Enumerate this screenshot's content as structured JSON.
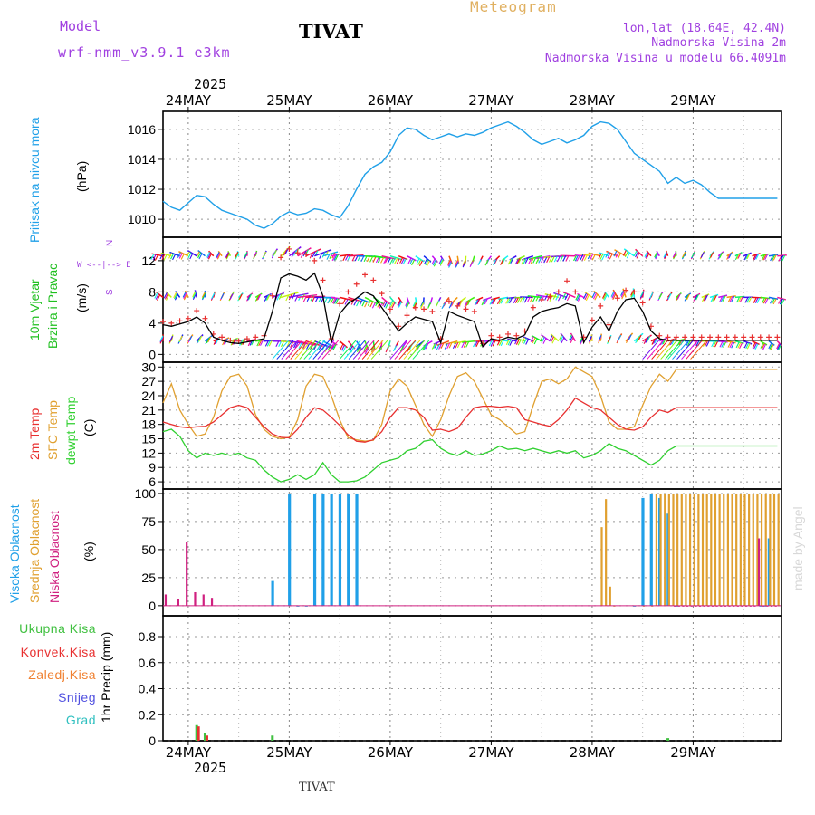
{
  "header": {
    "model_label": "Model",
    "model_name": "wrf-nmm_v3.9.1 e3km",
    "station": "TIVAT",
    "title": "Meteogram",
    "coords": "lon,lat (18.64E, 42.4N)",
    "elevation": "Nadmorska Visina 2m",
    "model_elevation": "Nadmorska Visina u modelu 66.4091m",
    "footer_station": "TIVAT",
    "credit": "made by Angel"
  },
  "colors": {
    "pressure": "#20a0e8",
    "wind_speed_label": "#20c020",
    "t2m": "#e83030",
    "tsfc": "#e0a030",
    "dewpt": "#30d030",
    "cloud_high": "#20a0e8",
    "cloud_mid": "#e0a030",
    "cloud_low": "#d02080",
    "precip_total": "#40c040",
    "precip_conv": "#e83030",
    "precip_frozen": "#f08030",
    "precip_snow": "#5050e0",
    "precip_hail": "#30c0c0"
  },
  "time_axis": {
    "year": "2025",
    "dates": [
      "24MAY",
      "25MAY",
      "26MAY",
      "27MAY",
      "28MAY",
      "29MAY"
    ],
    "start_hour": -6,
    "end_hour": 141
  },
  "panels": {
    "pressure": {
      "label": "Pritisak na nivou mora",
      "unit": "(hPa)",
      "ticks": [
        "1010",
        "1012",
        "1014",
        "1016"
      ]
    },
    "wind": {
      "label1": "10m Vjetar",
      "label2": "Brzina i Pravac",
      "unit": "(m/s)",
      "ticks": [
        "0",
        "4",
        "8",
        "12"
      ],
      "compass": "N",
      "compass_row": "W <--|--> E",
      "compass_s": "S"
    },
    "temperature": {
      "label_t2m": "2m Temp",
      "label_sfc": "SFC Temp",
      "label_dew": "dewpt Temp",
      "unit": "(C)",
      "ticks": [
        "6",
        "9",
        "12",
        "15",
        "18",
        "21",
        "24",
        "27",
        "30"
      ]
    },
    "cloud": {
      "label_high": "Visoka Oblacnost",
      "label_mid": "Srednja Oblacnost",
      "label_low": "Niska Oblacnost",
      "unit": "(%)",
      "ticks": [
        "0",
        "25",
        "50",
        "75",
        "100"
      ]
    },
    "precip": {
      "legend": [
        "Ukupna Kisa",
        "Konvek.Kisa",
        "Zaledj.Kisa",
        "Snijeg",
        "Grad"
      ],
      "unit": "1hr Precip (mm)",
      "ticks": [
        "0",
        "0.2",
        "0.4",
        "0.6",
        "0.8"
      ]
    }
  },
  "chart_data": [
    {
      "type": "line",
      "title": "Pritisak na nivou mora",
      "ylabel": "(hPa)",
      "ylim": [
        1008.8,
        1017.2
      ],
      "x_hours": [
        -6,
        -4,
        -2,
        0,
        2,
        4,
        6,
        8,
        10,
        12,
        14,
        16,
        18,
        20,
        22,
        24,
        26,
        28,
        30,
        32,
        34,
        36,
        38,
        40,
        42,
        44,
        46,
        48,
        50,
        52,
        54,
        56,
        58,
        60,
        62,
        64,
        66,
        68,
        70,
        72,
        74,
        76,
        78,
        80,
        82,
        84,
        86,
        88,
        90,
        92,
        94,
        96,
        98,
        100,
        102,
        104,
        106,
        108,
        110,
        112,
        114,
        116,
        118,
        120,
        122,
        124,
        126,
        128,
        130,
        132,
        134,
        136,
        138,
        140
      ],
      "series": [
        {
          "name": "SLP",
          "values": [
            1011.2,
            1010.8,
            1010.6,
            1011.1,
            1011.6,
            1011.5,
            1011.0,
            1010.6,
            1010.4,
            1010.2,
            1010.0,
            1009.6,
            1009.4,
            1009.7,
            1010.2,
            1010.5,
            1010.3,
            1010.4,
            1010.7,
            1010.6,
            1010.3,
            1010.1,
            1010.9,
            1012.0,
            1013.0,
            1013.5,
            1013.8,
            1014.5,
            1015.6,
            1016.1,
            1016.0,
            1015.6,
            1015.3,
            1015.5,
            1015.7,
            1015.5,
            1015.7,
            1015.6,
            1015.8,
            1016.1,
            1016.3,
            1016.5,
            1016.2,
            1015.8,
            1015.3,
            1015.0,
            1015.2,
            1015.4,
            1015.1,
            1015.3,
            1015.6,
            1016.2,
            1016.5,
            1016.4,
            1016.0,
            1015.2,
            1014.4,
            1014.0,
            1013.6,
            1013.2,
            1012.4,
            1012.8,
            1012.4,
            1012.6,
            1012.3,
            1011.8,
            1011.4,
            1011.4,
            1011.4,
            1011.4,
            1011.4,
            1011.4,
            1011.4,
            1011.4
          ]
        }
      ]
    },
    {
      "type": "line",
      "title": "10m Vjetar Brzina i Pravac",
      "ylabel": "(m/s)",
      "ylim": [
        -1,
        15
      ],
      "x_hours": [
        -6,
        -4,
        -2,
        0,
        2,
        4,
        6,
        8,
        10,
        12,
        14,
        16,
        18,
        20,
        22,
        24,
        26,
        28,
        30,
        32,
        34,
        36,
        38,
        40,
        42,
        44,
        46,
        48,
        50,
        52,
        54,
        56,
        58,
        60,
        62,
        64,
        66,
        68,
        70,
        72,
        74,
        76,
        78,
        80,
        82,
        84,
        86,
        88,
        90,
        92,
        94,
        96,
        98,
        100,
        102,
        104,
        106,
        108,
        110,
        112,
        114,
        116,
        118,
        120,
        122,
        124,
        126,
        128,
        130,
        132,
        134,
        136,
        138,
        140
      ],
      "series": [
        {
          "name": "mean wind",
          "values": [
            3.8,
            3.6,
            3.9,
            4.2,
            4.8,
            4.0,
            2.2,
            1.8,
            1.5,
            1.4,
            1.6,
            1.8,
            2.0,
            5.5,
            9.8,
            10.3,
            10.0,
            9.5,
            10.4,
            7.5,
            1.5,
            5.2,
            6.5,
            7.2,
            8.0,
            7.5,
            6.0,
            4.5,
            3.0,
            4.0,
            4.8,
            4.5,
            4.2,
            1.5,
            5.5,
            5.0,
            4.6,
            4.2,
            1.0,
            2.0,
            1.8,
            2.2,
            2.0,
            2.5,
            4.8,
            5.5,
            5.8,
            6.0,
            6.5,
            6.2,
            1.5,
            3.5,
            4.8,
            3.0,
            5.5,
            7.0,
            7.2,
            5.5,
            3.0,
            2.0,
            1.8,
            1.8,
            1.8,
            1.8,
            1.8,
            1.8,
            1.8,
            1.8,
            1.8,
            1.8,
            1.8,
            1.8,
            1.8,
            1.8
          ]
        },
        {
          "name": "gust",
          "values": [
            4.2,
            4.0,
            4.3,
            4.6,
            5.6,
            4.6,
            2.6,
            2.2,
            1.8,
            1.7,
            2.0,
            2.2,
            2.4,
            7.5,
            12.4,
            13.5,
            13.0,
            12.8,
            12.0,
            9.5,
            2.0,
            6.5,
            8.0,
            9.0,
            10.2,
            9.5,
            7.8,
            5.8,
            3.6,
            5.0,
            6.0,
            5.8,
            5.5,
            2.0,
            6.8,
            6.2,
            5.8,
            5.5,
            1.4,
            2.4,
            2.2,
            2.6,
            2.4,
            3.0,
            6.0,
            7.0,
            7.4,
            8.0,
            9.4,
            8.0,
            2.2,
            4.4,
            6.2,
            3.8,
            7.2,
            8.2,
            8.0,
            6.6,
            3.6,
            2.4,
            2.2,
            2.2,
            2.2,
            2.2,
            2.2,
            2.2,
            2.2,
            2.2,
            2.2,
            2.2,
            2.2,
            2.2,
            2.2,
            2.2
          ]
        }
      ]
    },
    {
      "type": "line",
      "title": "Temperatures",
      "ylabel": "(C)",
      "ylim": [
        4.5,
        31
      ],
      "x_hours": [
        -6,
        -4,
        -2,
        0,
        2,
        4,
        6,
        8,
        10,
        12,
        14,
        16,
        18,
        20,
        22,
        24,
        26,
        28,
        30,
        32,
        34,
        36,
        38,
        40,
        42,
        44,
        46,
        48,
        50,
        52,
        54,
        56,
        58,
        60,
        62,
        64,
        66,
        68,
        70,
        72,
        74,
        76,
        78,
        80,
        82,
        84,
        86,
        88,
        90,
        92,
        94,
        96,
        98,
        100,
        102,
        104,
        106,
        108,
        110,
        112,
        114,
        116,
        118,
        120,
        122,
        124,
        126,
        128,
        130,
        132,
        134,
        136,
        138,
        140
      ],
      "series": [
        {
          "name": "2m Temp",
          "values": [
            18.5,
            18.0,
            17.5,
            17.3,
            17.5,
            17.6,
            18.5,
            20.0,
            21.5,
            22.0,
            21.5,
            19.5,
            17.5,
            16.0,
            15.3,
            15.2,
            17.0,
            19.5,
            21.5,
            21.0,
            19.5,
            17.8,
            15.8,
            14.5,
            14.3,
            14.8,
            16.5,
            19.5,
            21.5,
            21.5,
            21.0,
            19.5,
            16.8,
            17.0,
            16.5,
            17.2,
            19.5,
            21.5,
            21.8,
            21.8,
            21.6,
            21.8,
            21.5,
            19.0,
            18.5,
            18.0,
            17.6,
            19.0,
            21.0,
            23.5,
            22.5,
            21.5,
            21.0,
            19.5,
            18.0,
            17.0,
            16.8,
            17.5,
            19.5,
            21.0,
            20.5,
            21.5,
            21.5,
            21.5,
            21.5,
            21.5,
            21.5,
            21.5,
            21.5,
            21.5,
            21.5,
            21.5,
            21.5,
            21.5
          ]
        },
        {
          "name": "SFC Temp",
          "values": [
            22.5,
            26.5,
            21.0,
            18.0,
            15.5,
            16.0,
            19.5,
            25.0,
            28.0,
            28.5,
            26.0,
            20.0,
            17.0,
            15.5,
            15.0,
            15.3,
            19.0,
            26.0,
            28.5,
            28.0,
            24.0,
            19.0,
            15.2,
            14.8,
            14.5,
            14.7,
            18.0,
            25.0,
            27.5,
            26.0,
            22.0,
            18.0,
            15.5,
            19.0,
            24.0,
            28.0,
            28.8,
            27.0,
            23.5,
            20.0,
            19.0,
            17.5,
            16.0,
            16.5,
            22.0,
            27.0,
            27.5,
            26.5,
            27.5,
            30.0,
            29.0,
            28.0,
            24.0,
            18.5,
            17.0,
            17.0,
            17.5,
            22.0,
            26.0,
            28.5,
            27.0,
            29.5,
            29.5,
            29.5,
            29.5,
            29.5,
            29.5,
            29.5,
            29.5,
            29.5,
            29.5,
            29.5,
            29.5,
            29.5
          ]
        },
        {
          "name": "dewpt Temp",
          "values": [
            16.5,
            17.0,
            15.5,
            12.5,
            11.0,
            12.0,
            11.5,
            12.0,
            11.5,
            12.0,
            11.0,
            10.5,
            8.5,
            7.0,
            6.0,
            6.5,
            7.5,
            6.5,
            7.5,
            10.0,
            7.5,
            6.0,
            6.0,
            6.2,
            7.0,
            8.5,
            10.0,
            10.5,
            11.0,
            12.5,
            13.0,
            14.5,
            14.8,
            13.0,
            12.0,
            11.5,
            12.5,
            11.5,
            11.8,
            12.5,
            13.5,
            12.8,
            13.0,
            12.5,
            13.0,
            12.5,
            12.0,
            12.5,
            12.0,
            12.5,
            11.0,
            11.5,
            12.5,
            14.0,
            13.0,
            12.5,
            11.5,
            10.5,
            9.5,
            10.5,
            12.5,
            13.5,
            13.5,
            13.5,
            13.5,
            13.5,
            13.5,
            13.5,
            13.5,
            13.5,
            13.5,
            13.5,
            13.5,
            13.5
          ]
        }
      ]
    },
    {
      "type": "bar",
      "title": "Oblacnost",
      "ylabel": "(%)",
      "ylim": [
        0,
        100
      ],
      "series": [
        {
          "name": "Visoka Oblacnost",
          "hours": [
            20,
            24,
            26,
            28,
            30,
            32,
            34,
            36,
            38,
            40,
            106,
            108,
            110,
            112,
            114,
            116,
            136,
            137,
            138
          ],
          "values": [
            22,
            100,
            0,
            0,
            100,
            100,
            100,
            100,
            100,
            100,
            0,
            96,
            100,
            96,
            82,
            0,
            0,
            0,
            60
          ]
        },
        {
          "name": "Srednja Oblacnost",
          "hours": [
            98,
            99,
            100,
            101,
            108,
            110,
            111,
            112,
            113,
            114,
            115,
            116,
            117,
            118,
            119,
            120,
            121,
            122,
            123,
            124,
            125,
            126,
            127,
            128,
            129,
            130,
            131,
            132,
            133,
            134,
            135,
            136,
            137,
            138,
            139,
            140
          ],
          "values": [
            70,
            95,
            17,
            0,
            0,
            0,
            100,
            100,
            100,
            100,
            100,
            100,
            100,
            100,
            100,
            100,
            100,
            100,
            100,
            100,
            100,
            100,
            100,
            100,
            100,
            100,
            100,
            100,
            100,
            100,
            100,
            100,
            100,
            100,
            100,
            100
          ]
        },
        {
          "name": "Niska Oblacnost",
          "hours": [
            -5,
            -2,
            0,
            2,
            4,
            6,
            116,
            117,
            118,
            119,
            120,
            121,
            122,
            123,
            124,
            125,
            126,
            127,
            128,
            129,
            130,
            131,
            132,
            133,
            134,
            135,
            136,
            137,
            138,
            139,
            140
          ],
          "values": [
            10,
            6,
            57,
            12,
            10,
            7,
            0,
            0,
            0,
            0,
            0,
            0,
            0,
            0,
            0,
            0,
            0,
            0,
            0,
            0,
            0,
            0,
            0,
            0,
            0,
            0,
            60,
            0,
            0,
            0,
            0
          ]
        }
      ]
    },
    {
      "type": "bar",
      "title": "1hr Precip",
      "ylabel": "1hr Precip (mm)",
      "ylim": [
        0,
        0.96
      ],
      "series": [
        {
          "name": "Ukupna Kisa",
          "hours": [
            2,
            4,
            20,
            114
          ],
          "values": [
            0.12,
            0.06,
            0.04,
            0.02
          ]
        },
        {
          "name": "Konvek.Kisa",
          "hours": [
            2,
            4
          ],
          "values": [
            0.11,
            0.04
          ]
        }
      ]
    }
  ]
}
